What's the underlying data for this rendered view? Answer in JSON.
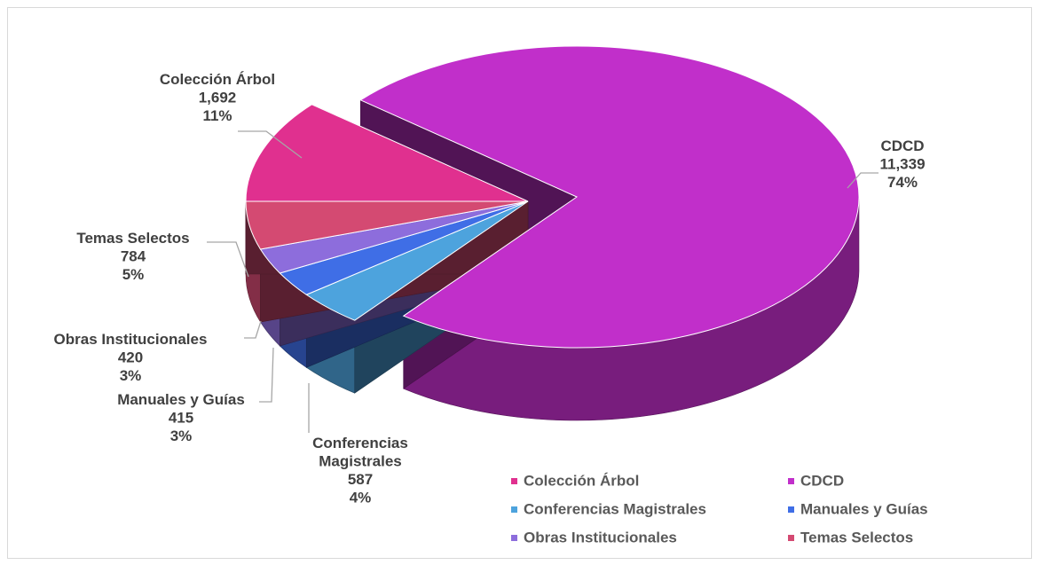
{
  "chart_data": {
    "type": "pie",
    "title": "",
    "legend_position": "bottom-right",
    "slices": [
      {
        "name": "Colección Árbol",
        "value": 1692,
        "value_label": "1,692",
        "percent_label": "11%",
        "color": "#e0308f"
      },
      {
        "name": "CDCD",
        "value": 11339,
        "value_label": "11,339",
        "percent_label": "74%",
        "color": "#c12fca"
      },
      {
        "name": "Conferencias Magistrales",
        "value": 587,
        "value_label": "587",
        "percent_label": "4%",
        "color": "#4da3dd"
      },
      {
        "name": "Manuales y Guías",
        "value": 415,
        "value_label": "415",
        "percent_label": "3%",
        "color": "#3f6ee6"
      },
      {
        "name": "Obras Institucionales",
        "value": 420,
        "value_label": "420",
        "percent_label": "3%",
        "color": "#8d6ddc"
      },
      {
        "name": "Temas Selectos",
        "value": 784,
        "value_label": "784",
        "percent_label": "5%",
        "color": "#d44a72"
      }
    ]
  }
}
